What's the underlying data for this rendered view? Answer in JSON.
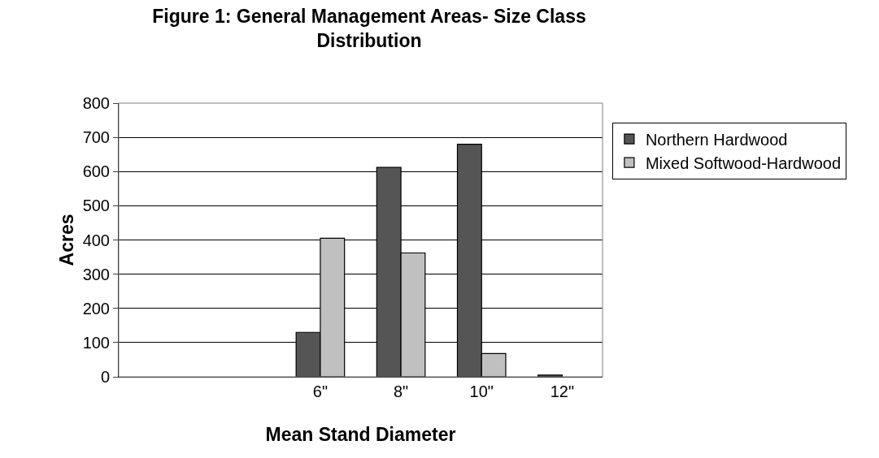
{
  "chart_data": {
    "type": "bar",
    "title": "Figure 1: General Management Areas- Size Class Distribution",
    "xlabel": "Mean Stand Diameter",
    "ylabel": "Acres",
    "categories": [
      null,
      null,
      "6\"",
      "8\"",
      "10\"",
      "12\""
    ],
    "series": [
      {
        "name": "Northern Hardwood",
        "color": "#555555",
        "values": [
          null,
          null,
          130,
          612,
          680,
          5
        ]
      },
      {
        "name": "Mixed Softwood-Hardwood",
        "color": "#c0c0c0",
        "values": [
          null,
          null,
          405,
          362,
          68,
          null
        ]
      }
    ],
    "ylim": [
      0,
      800
    ],
    "yticks": [
      0,
      100,
      200,
      300,
      400,
      500,
      600,
      700,
      800
    ],
    "grid": "y",
    "legend": "right"
  }
}
